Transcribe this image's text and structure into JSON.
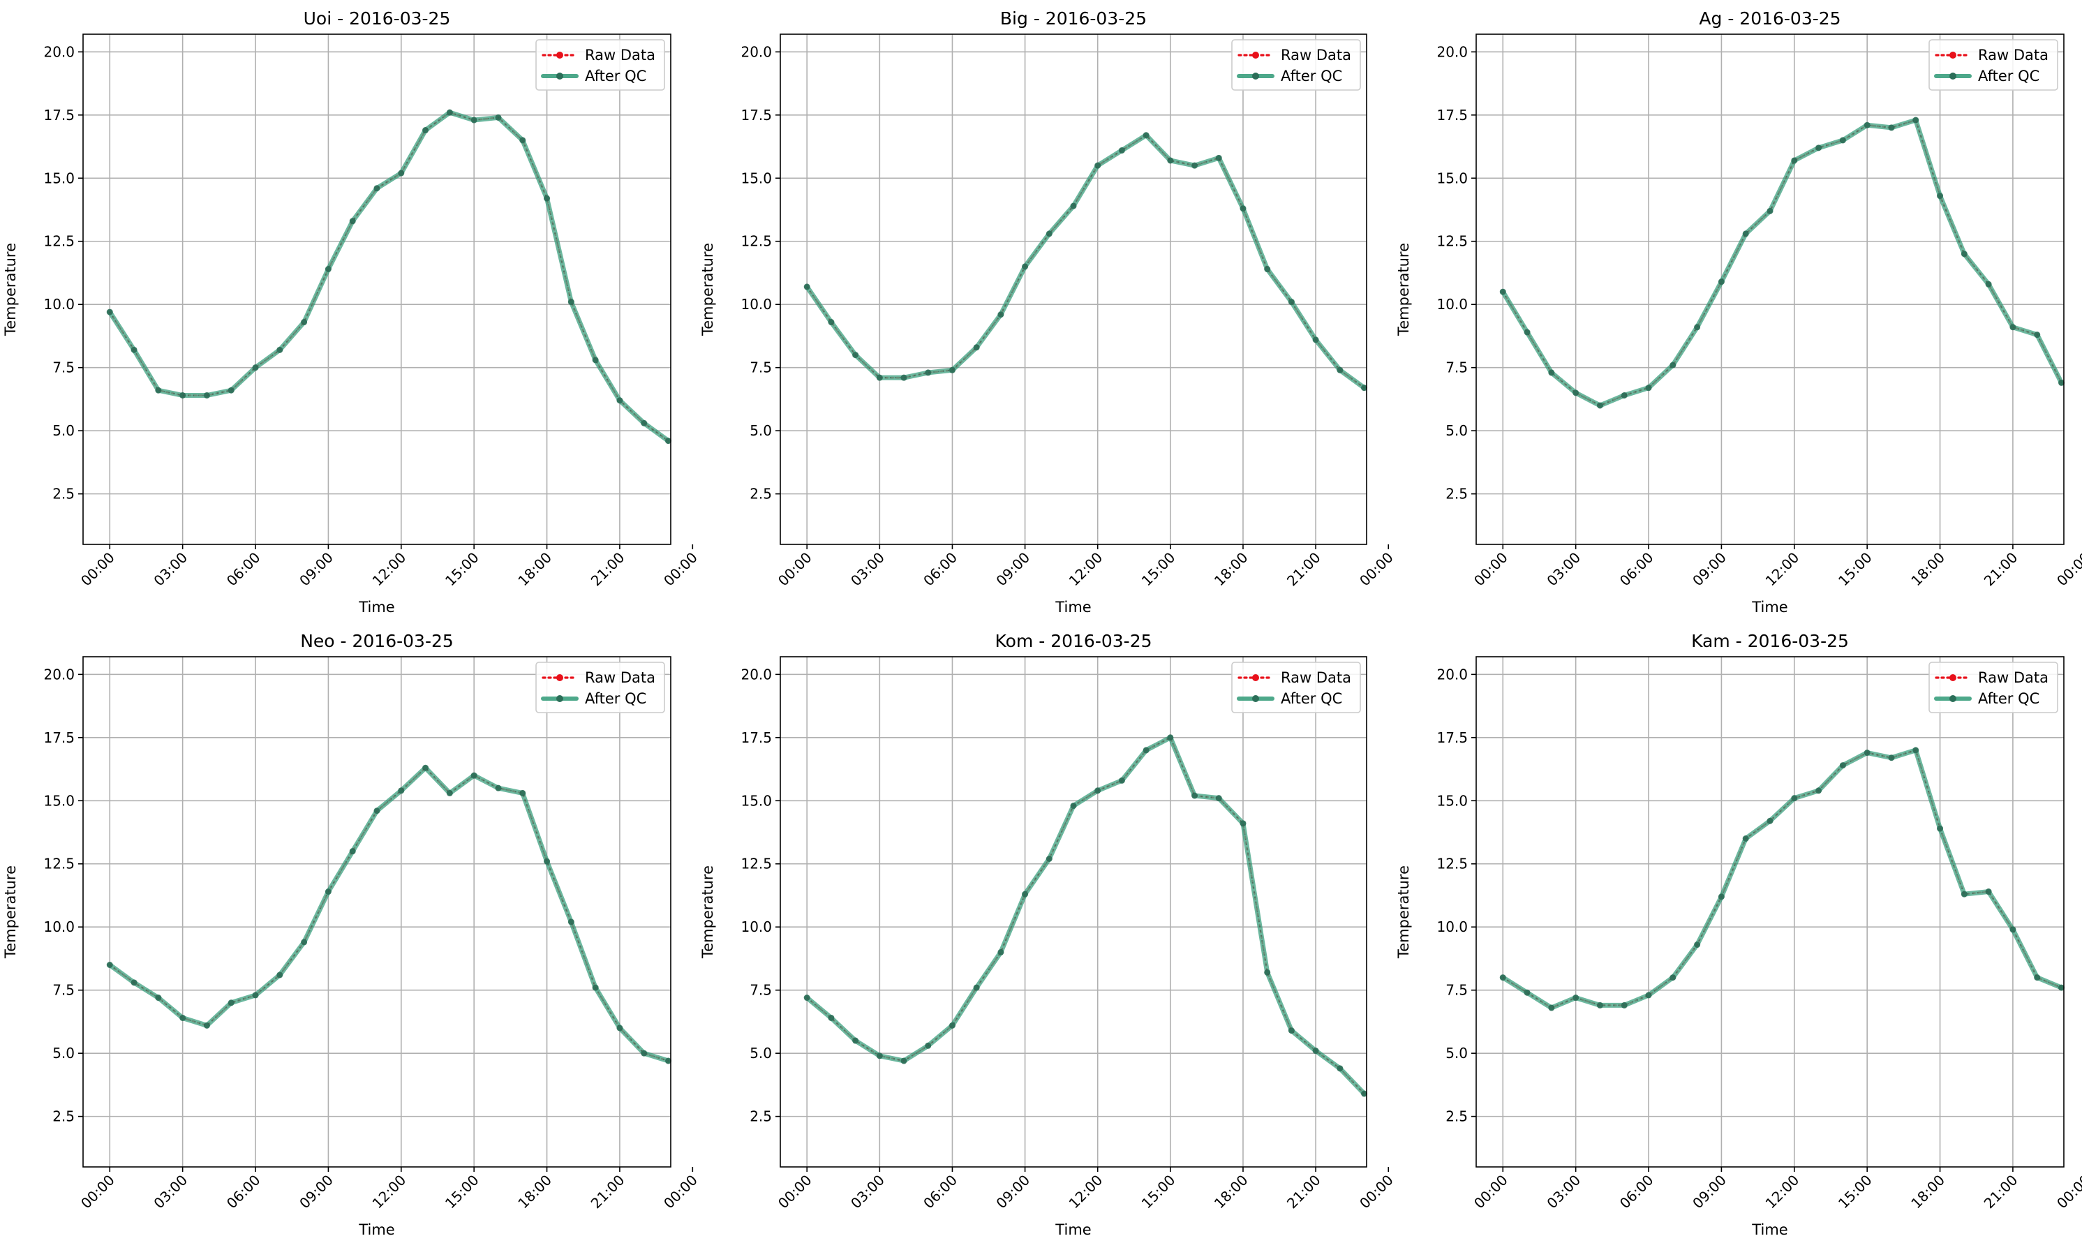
{
  "figure": {
    "colors": {
      "raw": "#e8101a",
      "after_qc": "#2e9a76",
      "grid": "#b0b0b0"
    }
  },
  "chart_data": [
    {
      "type": "line",
      "title": "Uoi - 2016-03-25",
      "xlabel": "Time",
      "ylabel": "Temperature",
      "xlim": [
        -1.1,
        23.1
      ],
      "ylim": [
        0.5,
        20.7
      ],
      "x_ticks": [
        0,
        3,
        6,
        9,
        12,
        15,
        18,
        21,
        24
      ],
      "x_tick_labels": [
        "00:00",
        "03:00",
        "06:00",
        "09:00",
        "12:00",
        "15:00",
        "18:00",
        "21:00",
        "00:00"
      ],
      "y_ticks": [
        2.5,
        5.0,
        7.5,
        10.0,
        12.5,
        15.0,
        17.5,
        20.0
      ],
      "y_tick_labels": [
        "2.5",
        "5.0",
        "7.5",
        "10.0",
        "12.5",
        "15.0",
        "17.5",
        "20.0"
      ],
      "grid": true,
      "legend": {
        "position": "top-right",
        "entries": [
          "Raw Data",
          "After QC"
        ]
      },
      "x": [
        0,
        1,
        2,
        3,
        4,
        5,
        6,
        7,
        8,
        9,
        10,
        11,
        12,
        13,
        14,
        15,
        16,
        17,
        18,
        19,
        20,
        21,
        22,
        23
      ],
      "series": [
        {
          "name": "Raw Data",
          "values": [
            9.7,
            8.2,
            6.6,
            6.4,
            6.4,
            6.6,
            7.5,
            8.2,
            9.3,
            11.4,
            13.3,
            14.6,
            15.2,
            16.9,
            17.6,
            17.3,
            17.4,
            16.5,
            14.2,
            10.1,
            7.8,
            6.2,
            5.3,
            4.6
          ]
        },
        {
          "name": "After QC",
          "values": [
            9.7,
            8.2,
            6.6,
            6.4,
            6.4,
            6.6,
            7.5,
            8.2,
            9.3,
            11.4,
            13.3,
            14.6,
            15.2,
            16.9,
            17.6,
            17.3,
            17.4,
            16.5,
            14.2,
            10.1,
            7.8,
            6.2,
            5.3,
            4.6
          ]
        }
      ]
    },
    {
      "type": "line",
      "title": "Big - 2016-03-25",
      "xlabel": "Time",
      "ylabel": "Temperature",
      "xlim": [
        -1.1,
        23.1
      ],
      "ylim": [
        0.5,
        20.7
      ],
      "x_ticks": [
        0,
        3,
        6,
        9,
        12,
        15,
        18,
        21,
        24
      ],
      "x_tick_labels": [
        "00:00",
        "03:00",
        "06:00",
        "09:00",
        "12:00",
        "15:00",
        "18:00",
        "21:00",
        "00:00"
      ],
      "y_ticks": [
        2.5,
        5.0,
        7.5,
        10.0,
        12.5,
        15.0,
        17.5,
        20.0
      ],
      "y_tick_labels": [
        "2.5",
        "5.0",
        "7.5",
        "10.0",
        "12.5",
        "15.0",
        "17.5",
        "20.0"
      ],
      "grid": true,
      "legend": {
        "position": "top-right",
        "entries": [
          "Raw Data",
          "After QC"
        ]
      },
      "x": [
        0,
        1,
        2,
        3,
        4,
        5,
        6,
        7,
        8,
        9,
        10,
        11,
        12,
        13,
        14,
        15,
        16,
        17,
        18,
        19,
        20,
        21,
        22,
        23
      ],
      "series": [
        {
          "name": "Raw Data",
          "values": [
            10.7,
            9.3,
            8.0,
            7.1,
            7.1,
            7.3,
            7.4,
            8.3,
            9.6,
            11.5,
            12.8,
            13.9,
            15.5,
            16.1,
            16.7,
            15.7,
            15.5,
            15.8,
            13.8,
            11.4,
            10.1,
            8.6,
            7.4,
            6.7
          ]
        },
        {
          "name": "After QC",
          "values": [
            10.7,
            9.3,
            8.0,
            7.1,
            7.1,
            7.3,
            7.4,
            8.3,
            9.6,
            11.5,
            12.8,
            13.9,
            15.5,
            16.1,
            16.7,
            15.7,
            15.5,
            15.8,
            13.8,
            11.4,
            10.1,
            8.6,
            7.4,
            6.7
          ]
        }
      ]
    },
    {
      "type": "line",
      "title": "Ag - 2016-03-25",
      "xlabel": "Time",
      "ylabel": "Temperature",
      "xlim": [
        -1.1,
        23.1
      ],
      "ylim": [
        0.5,
        20.7
      ],
      "x_ticks": [
        0,
        3,
        6,
        9,
        12,
        15,
        18,
        21,
        24
      ],
      "x_tick_labels": [
        "00:00",
        "03:00",
        "06:00",
        "09:00",
        "12:00",
        "15:00",
        "18:00",
        "21:00",
        "00:00"
      ],
      "y_ticks": [
        2.5,
        5.0,
        7.5,
        10.0,
        12.5,
        15.0,
        17.5,
        20.0
      ],
      "y_tick_labels": [
        "2.5",
        "5.0",
        "7.5",
        "10.0",
        "12.5",
        "15.0",
        "17.5",
        "20.0"
      ],
      "grid": true,
      "legend": {
        "position": "top-right",
        "entries": [
          "Raw Data",
          "After QC"
        ]
      },
      "x": [
        0,
        1,
        2,
        3,
        4,
        5,
        6,
        7,
        8,
        9,
        10,
        11,
        12,
        13,
        14,
        15,
        16,
        17,
        18,
        19,
        20,
        21,
        22,
        23
      ],
      "series": [
        {
          "name": "Raw Data",
          "values": [
            10.5,
            8.9,
            7.3,
            6.5,
            6.0,
            6.4,
            6.7,
            7.6,
            9.1,
            10.9,
            12.8,
            13.7,
            15.7,
            16.2,
            16.5,
            17.1,
            17.0,
            17.3,
            14.3,
            12.0,
            10.8,
            9.1,
            8.8,
            6.9
          ]
        },
        {
          "name": "After QC",
          "values": [
            10.5,
            8.9,
            7.3,
            6.5,
            6.0,
            6.4,
            6.7,
            7.6,
            9.1,
            10.9,
            12.8,
            13.7,
            15.7,
            16.2,
            16.5,
            17.1,
            17.0,
            17.3,
            14.3,
            12.0,
            10.8,
            9.1,
            8.8,
            6.9
          ]
        }
      ]
    },
    {
      "type": "line",
      "title": "Neo - 2016-03-25",
      "xlabel": "Time",
      "ylabel": "Temperature",
      "xlim": [
        -1.1,
        23.1
      ],
      "ylim": [
        0.5,
        20.7
      ],
      "x_ticks": [
        0,
        3,
        6,
        9,
        12,
        15,
        18,
        21,
        24
      ],
      "x_tick_labels": [
        "00:00",
        "03:00",
        "06:00",
        "09:00",
        "12:00",
        "15:00",
        "18:00",
        "21:00",
        "00:00"
      ],
      "y_ticks": [
        2.5,
        5.0,
        7.5,
        10.0,
        12.5,
        15.0,
        17.5,
        20.0
      ],
      "y_tick_labels": [
        "2.5",
        "5.0",
        "7.5",
        "10.0",
        "12.5",
        "15.0",
        "17.5",
        "20.0"
      ],
      "grid": true,
      "legend": {
        "position": "top-right",
        "entries": [
          "Raw Data",
          "After QC"
        ]
      },
      "x": [
        0,
        1,
        2,
        3,
        4,
        5,
        6,
        7,
        8,
        9,
        10,
        11,
        12,
        13,
        14,
        15,
        16,
        17,
        18,
        19,
        20,
        21,
        22,
        23
      ],
      "series": [
        {
          "name": "Raw Data",
          "values": [
            8.5,
            7.8,
            7.2,
            6.4,
            6.1,
            7.0,
            7.3,
            8.1,
            9.4,
            11.4,
            13.0,
            14.6,
            15.4,
            16.3,
            15.3,
            16.0,
            15.5,
            15.3,
            12.6,
            10.2,
            7.6,
            6.0,
            5.0,
            4.7
          ]
        },
        {
          "name": "After QC",
          "values": [
            8.5,
            7.8,
            7.2,
            6.4,
            6.1,
            7.0,
            7.3,
            8.1,
            9.4,
            11.4,
            13.0,
            14.6,
            15.4,
            16.3,
            15.3,
            16.0,
            15.5,
            15.3,
            12.6,
            10.2,
            7.6,
            6.0,
            5.0,
            4.7
          ]
        }
      ]
    },
    {
      "type": "line",
      "title": "Kom - 2016-03-25",
      "xlabel": "Time",
      "ylabel": "Temperature",
      "xlim": [
        -1.1,
        23.1
      ],
      "ylim": [
        0.5,
        20.7
      ],
      "x_ticks": [
        0,
        3,
        6,
        9,
        12,
        15,
        18,
        21,
        24
      ],
      "x_tick_labels": [
        "00:00",
        "03:00",
        "06:00",
        "09:00",
        "12:00",
        "15:00",
        "18:00",
        "21:00",
        "00:00"
      ],
      "y_ticks": [
        2.5,
        5.0,
        7.5,
        10.0,
        12.5,
        15.0,
        17.5,
        20.0
      ],
      "y_tick_labels": [
        "2.5",
        "5.0",
        "7.5",
        "10.0",
        "12.5",
        "15.0",
        "17.5",
        "20.0"
      ],
      "grid": true,
      "legend": {
        "position": "top-right",
        "entries": [
          "Raw Data",
          "After QC"
        ]
      },
      "x": [
        0,
        1,
        2,
        3,
        4,
        5,
        6,
        7,
        8,
        9,
        10,
        11,
        12,
        13,
        14,
        15,
        16,
        17,
        18,
        19,
        20,
        21,
        22,
        23
      ],
      "series": [
        {
          "name": "Raw Data",
          "values": [
            7.2,
            6.4,
            5.5,
            4.9,
            4.7,
            5.3,
            6.1,
            7.6,
            9.0,
            11.3,
            12.7,
            14.8,
            15.4,
            15.8,
            17.0,
            17.5,
            15.2,
            15.1,
            14.1,
            8.2,
            5.9,
            5.1,
            4.4,
            3.4
          ]
        },
        {
          "name": "After QC",
          "values": [
            7.2,
            6.4,
            5.5,
            4.9,
            4.7,
            5.3,
            6.1,
            7.6,
            9.0,
            11.3,
            12.7,
            14.8,
            15.4,
            15.8,
            17.0,
            17.5,
            15.2,
            15.1,
            14.1,
            8.2,
            5.9,
            5.1,
            4.4,
            3.4
          ]
        }
      ]
    },
    {
      "type": "line",
      "title": "Kam - 2016-03-25",
      "xlabel": "Time",
      "ylabel": "Temperature",
      "xlim": [
        -1.1,
        23.1
      ],
      "ylim": [
        0.5,
        20.7
      ],
      "x_ticks": [
        0,
        3,
        6,
        9,
        12,
        15,
        18,
        21,
        24
      ],
      "x_tick_labels": [
        "00:00",
        "03:00",
        "06:00",
        "09:00",
        "12:00",
        "15:00",
        "18:00",
        "21:00",
        "00:00"
      ],
      "y_ticks": [
        2.5,
        5.0,
        7.5,
        10.0,
        12.5,
        15.0,
        17.5,
        20.0
      ],
      "y_tick_labels": [
        "2.5",
        "5.0",
        "7.5",
        "10.0",
        "12.5",
        "15.0",
        "17.5",
        "20.0"
      ],
      "grid": true,
      "legend": {
        "position": "top-right",
        "entries": [
          "Raw Data",
          "After QC"
        ]
      },
      "x": [
        0,
        1,
        2,
        3,
        4,
        5,
        6,
        7,
        8,
        9,
        10,
        11,
        12,
        13,
        14,
        15,
        16,
        17,
        18,
        19,
        20,
        21,
        22,
        23
      ],
      "series": [
        {
          "name": "Raw Data",
          "values": [
            8.0,
            7.4,
            6.8,
            7.2,
            6.9,
            6.9,
            7.3,
            8.0,
            9.3,
            11.2,
            13.5,
            14.2,
            15.1,
            15.4,
            16.4,
            16.9,
            16.7,
            17.0,
            13.9,
            11.3,
            11.4,
            9.9,
            8.0,
            7.6
          ]
        },
        {
          "name": "After QC",
          "values": [
            8.0,
            7.4,
            6.8,
            7.2,
            6.9,
            6.9,
            7.3,
            8.0,
            9.3,
            11.2,
            13.5,
            14.2,
            15.1,
            15.4,
            16.4,
            16.9,
            16.7,
            17.0,
            13.9,
            11.3,
            11.4,
            9.9,
            8.0,
            7.6
          ]
        }
      ]
    }
  ]
}
